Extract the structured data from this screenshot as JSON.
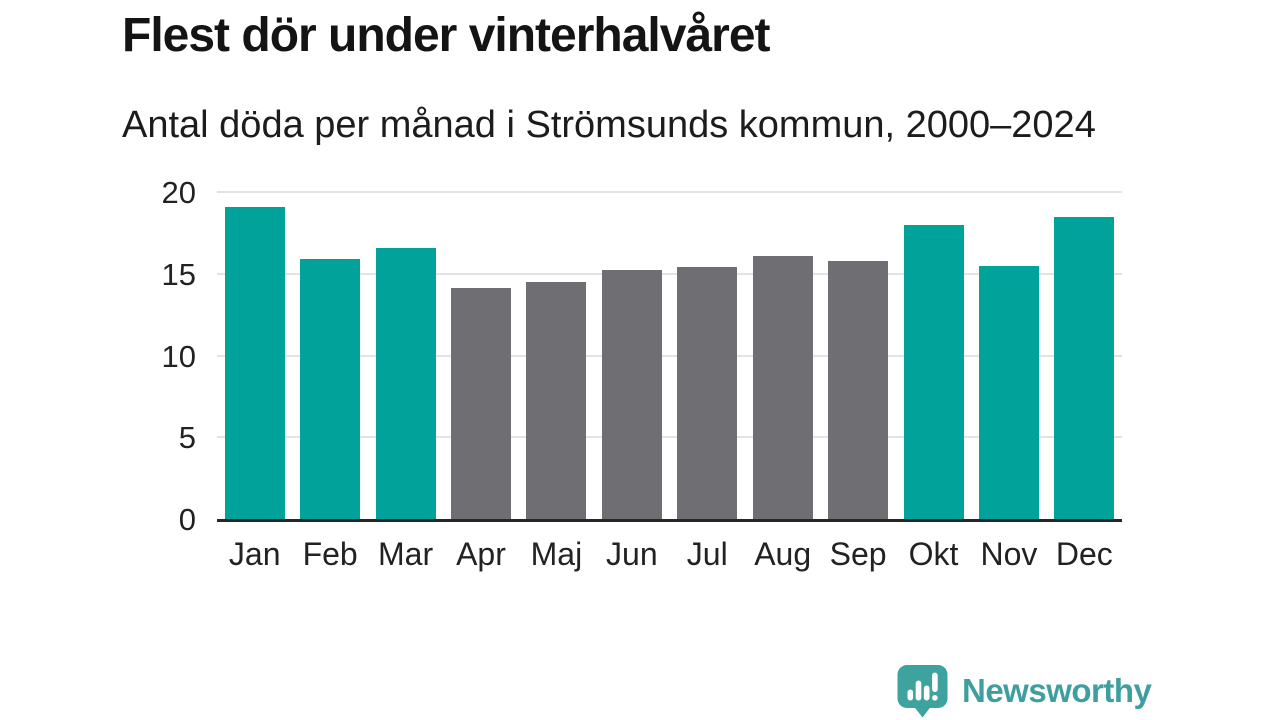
{
  "chart_data": {
    "type": "bar",
    "title": "Flest dör under vinterhalvåret",
    "subtitle": "Antal döda per månad i Strömsunds kommun, 2000–2024",
    "categories": [
      "Jan",
      "Feb",
      "Mar",
      "Apr",
      "Maj",
      "Jun",
      "Jul",
      "Aug",
      "Sep",
      "Okt",
      "Nov",
      "Dec"
    ],
    "values": [
      19.1,
      15.9,
      16.6,
      14.1,
      14.5,
      15.2,
      15.4,
      16.1,
      15.8,
      18.0,
      15.5,
      18.5
    ],
    "bar_groups": [
      "winter",
      "winter",
      "winter",
      "summer",
      "summer",
      "summer",
      "summer",
      "summer",
      "summer",
      "winter",
      "winter",
      "winter"
    ],
    "group_colors": {
      "winter": "#00a29a",
      "summer": "#6e6e73"
    },
    "xlabel": "",
    "ylabel": "",
    "ylim": [
      0,
      20
    ],
    "yticks": [
      0,
      5,
      10,
      15,
      20
    ],
    "grid": true,
    "legend": "none",
    "gridline_color": "#e3e3e4",
    "axis_line_color": "#262626"
  },
  "footer": {
    "brand": "Newsworthy",
    "brand_color": "#3f9fa0",
    "logo_icon": "newsworthy-speech-bubble-bar-chart-icon",
    "logo_color": "#3ea39e"
  }
}
